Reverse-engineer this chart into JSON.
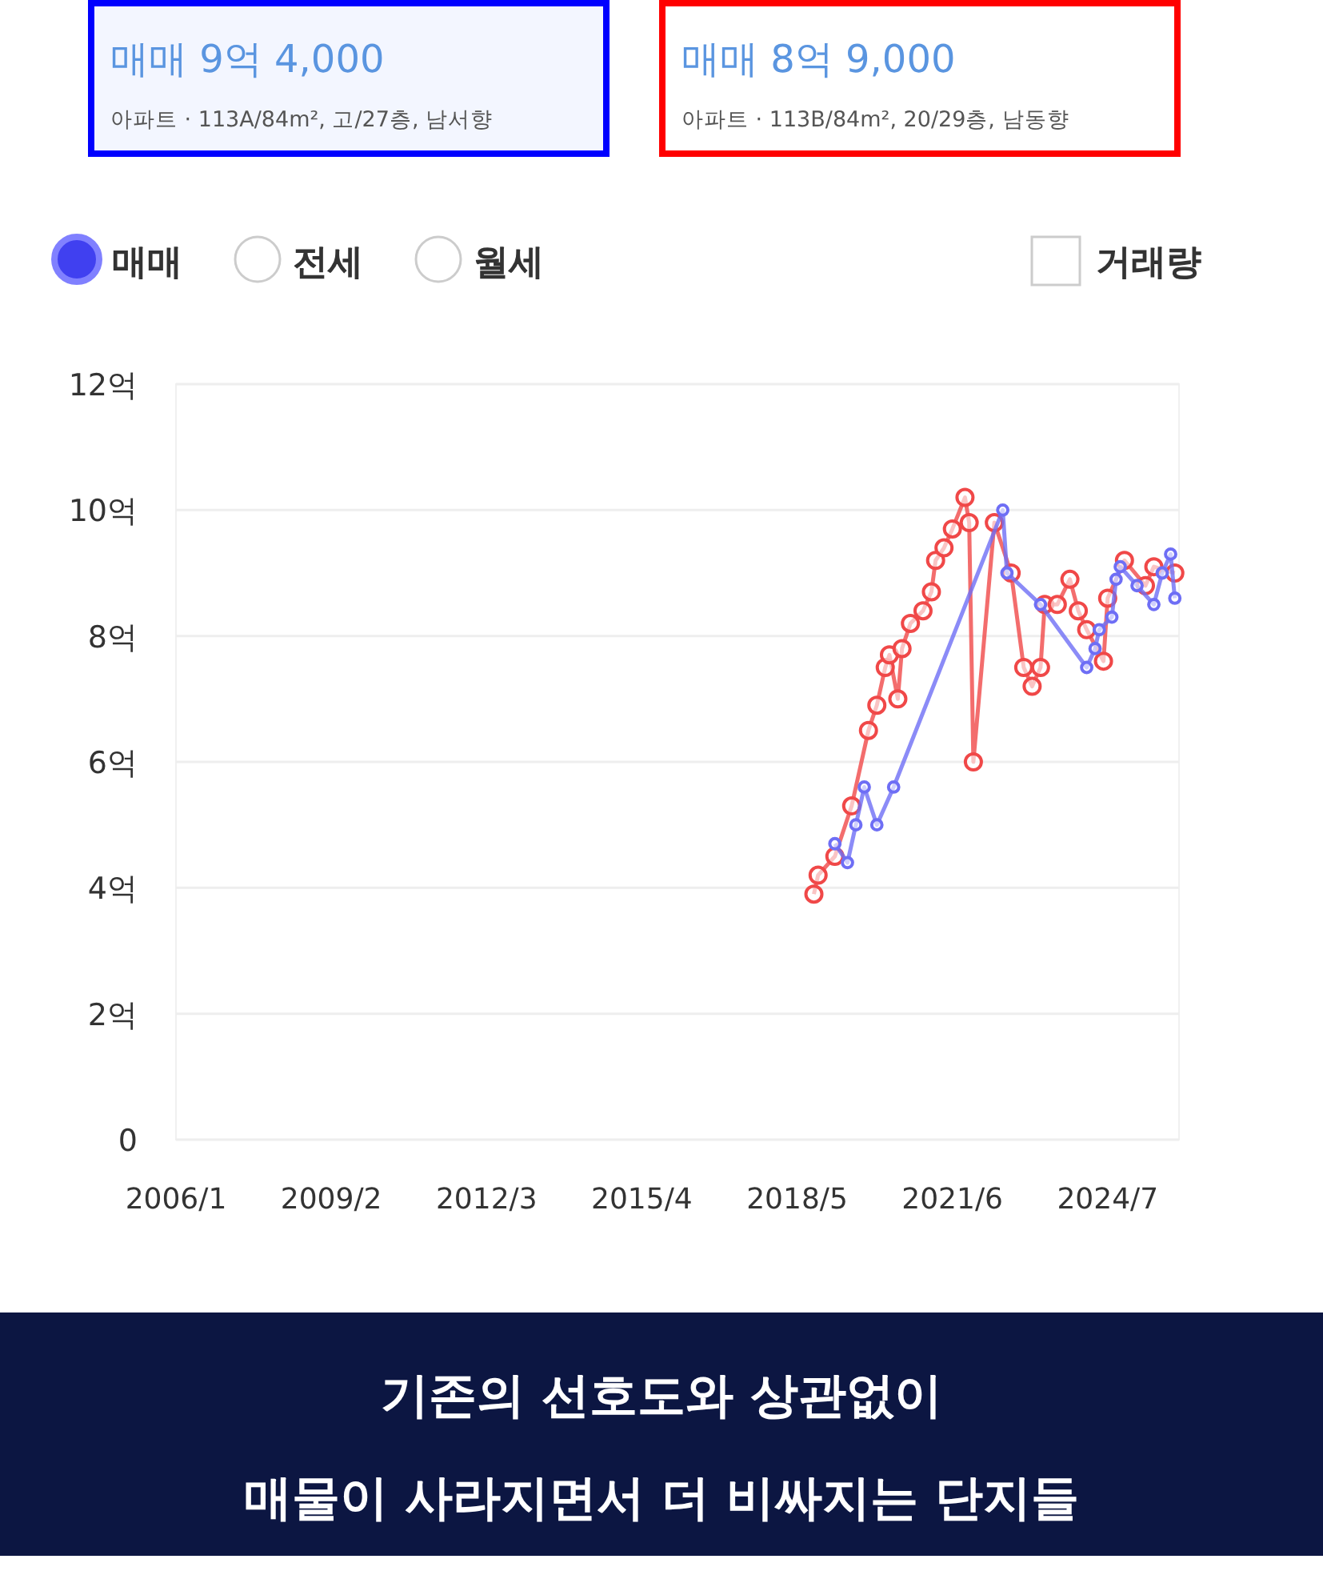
{
  "chart_data": {
    "type": "line",
    "annotations": [
      "매매 9억 4,000",
      "아파트 · 113A/84m², 고/27층, 남서향",
      "매매 8억 9,000",
      "아파트 · 113B/84m², 20/29층, 남동향",
      "매매",
      "전세",
      "월세",
      "거래량",
      "기존의 선호도와 상관없이",
      "매물이 사라지면서 더 비싸지는 단지들"
    ],
    "series": [
      {
        "color": "#f04848",
        "x": [
          "2018-09",
          "2018-10",
          "2019-02",
          "2019-06",
          "2019-10",
          "2019-12",
          "2020-02",
          "2020-03",
          "2020-05",
          "2020-06",
          "2020-08",
          "2020-11",
          "2021-01",
          "2021-02",
          "2021-04",
          "2021-06",
          "2021-09",
          "2021-10",
          "2021-11",
          "2022-04",
          "2022-08",
          "2022-11",
          "2023-01",
          "2023-03",
          "2023-04",
          "2023-07",
          "2023-10",
          "2023-12",
          "2024-02",
          "2024-06",
          "2024-07",
          "2024-11",
          "2025-04",
          "2025-06",
          "2025-11"
        ],
        "values": [
          3.9,
          4.2,
          4.5,
          5.3,
          6.5,
          6.9,
          7.5,
          7.7,
          7.0,
          7.8,
          8.2,
          8.4,
          8.7,
          9.2,
          9.4,
          9.7,
          10.2,
          9.8,
          6.0,
          9.8,
          9.0,
          7.5,
          7.2,
          7.5,
          8.5,
          8.5,
          8.9,
          8.4,
          8.1,
          7.6,
          8.6,
          9.2,
          8.8,
          9.1,
          9.0
        ]
      },
      {
        "color": "#6e6ef5",
        "x": [
          "2019-02",
          "2019-05",
          "2019-07",
          "2019-09",
          "2019-12",
          "2020-04",
          "2022-06",
          "2022-07",
          "2023-03",
          "2024-02",
          "2024-04",
          "2024-05",
          "2024-08",
          "2024-09",
          "2024-10",
          "2025-02",
          "2025-06",
          "2025-08",
          "2025-10",
          "2025-11"
        ],
        "values": [
          4.7,
          4.4,
          5.0,
          5.6,
          5.0,
          5.6,
          10.0,
          9.0,
          8.5,
          7.5,
          7.8,
          8.1,
          8.3,
          8.9,
          9.1,
          8.8,
          8.5,
          9.0,
          9.3,
          8.6
        ]
      }
    ],
    "xlim": [
      "2006-01",
      "2025-12"
    ],
    "xticks": [
      {
        "value": "2006-01",
        "label": "2006/1"
      },
      {
        "value": "2009-02",
        "label": "2009/2"
      },
      {
        "value": "2012-03",
        "label": "2012/3"
      },
      {
        "value": "2015-04",
        "label": "2015/4"
      },
      {
        "value": "2018-05",
        "label": "2018/5"
      },
      {
        "value": "2021-06",
        "label": "2021/6"
      },
      {
        "value": "2024-07",
        "label": "2024/7"
      }
    ],
    "ylim": [
      0,
      12
    ],
    "yticks": [
      0,
      {
        "value": 2,
        "label": "2억"
      },
      {
        "value": 4,
        "label": "4억"
      },
      {
        "value": 6,
        "label": "6억"
      },
      {
        "value": 8,
        "label": "8억"
      },
      {
        "value": 10,
        "label": "10억"
      },
      {
        "value": 12,
        "label": "12억"
      }
    ],
    "grid": "y",
    "marker": "circle",
    "line_style": "solid"
  }
}
